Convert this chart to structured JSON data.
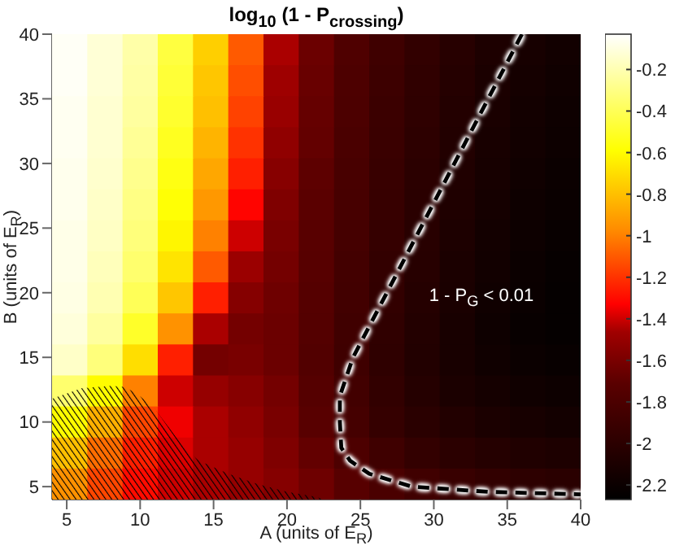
{
  "chart_data": {
    "type": "heatmap",
    "title": "log$_{10}$ (1 - P$_{crossing}$)",
    "xlabel": "A  (units of E$_{R}$)",
    "ylabel": "B  (units of E$_{R}$)",
    "x": [
      5.2,
      7.6,
      10,
      12.4,
      14.8,
      17.2,
      19.6,
      22,
      24.4,
      26.8,
      29.2,
      31.6,
      34,
      36.4,
      38.8
    ],
    "xlim": [
      4,
      40
    ],
    "ylim": [
      4,
      40
    ],
    "xticks": [
      5,
      10,
      15,
      20,
      25,
      30,
      35,
      40
    ],
    "yticks": [
      5,
      10,
      15,
      20,
      25,
      30,
      35,
      40
    ],
    "clim": [
      -2.27,
      -0.03
    ],
    "cticks": [
      -0.2,
      -0.4,
      -0.6,
      -0.8,
      -1,
      -1.2,
      -1.4,
      -1.6,
      -1.8,
      -2,
      -2.2
    ],
    "cells": [
      [
        -0.05,
        -0.12,
        -0.22,
        -0.45,
        -0.75,
        -1.1,
        -1.45,
        -1.65,
        -1.78,
        -1.88,
        -1.96,
        -2.03,
        -2.09,
        -2.13,
        -2.16
      ],
      [
        -0.05,
        -0.12,
        -0.23,
        -0.47,
        -0.78,
        -1.13,
        -1.47,
        -1.66,
        -1.79,
        -1.89,
        -1.97,
        -2.04,
        -2.1,
        -2.14,
        -2.17
      ],
      [
        -0.06,
        -0.13,
        -0.24,
        -0.49,
        -0.8,
        -1.16,
        -1.49,
        -1.67,
        -1.8,
        -1.9,
        -1.98,
        -2.05,
        -2.11,
        -2.15,
        -2.18
      ],
      [
        -0.06,
        -0.13,
        -0.26,
        -0.52,
        -0.84,
        -1.2,
        -1.52,
        -1.68,
        -1.81,
        -1.91,
        -1.99,
        -2.06,
        -2.12,
        -2.16,
        -2.19
      ],
      [
        -0.07,
        -0.14,
        -0.28,
        -0.55,
        -0.88,
        -1.25,
        -1.55,
        -1.7,
        -1.82,
        -1.92,
        -2.0,
        -2.07,
        -2.13,
        -2.17,
        -2.2
      ],
      [
        -0.07,
        -0.15,
        -0.3,
        -0.58,
        -0.93,
        -1.32,
        -1.58,
        -1.71,
        -1.83,
        -1.93,
        -2.01,
        -2.08,
        -2.14,
        -2.18,
        -2.21
      ],
      [
        -0.08,
        -0.16,
        -0.32,
        -0.62,
        -1.0,
        -1.4,
        -1.6,
        -1.72,
        -1.84,
        -1.94,
        -2.02,
        -2.09,
        -2.15,
        -2.19,
        -2.22
      ],
      [
        -0.08,
        -0.18,
        -0.35,
        -0.68,
        -1.1,
        -1.48,
        -1.62,
        -1.73,
        -1.85,
        -1.95,
        -2.03,
        -2.1,
        -2.16,
        -2.2,
        -2.23
      ],
      [
        -0.09,
        -0.2,
        -0.4,
        -0.78,
        -1.25,
        -1.56,
        -1.64,
        -1.74,
        -1.86,
        -1.96,
        -2.04,
        -2.11,
        -2.17,
        -2.21,
        -2.24
      ],
      [
        -0.11,
        -0.24,
        -0.5,
        -0.95,
        -1.45,
        -1.62,
        -1.65,
        -1.75,
        -1.87,
        -1.97,
        -2.05,
        -2.12,
        -2.18,
        -2.22,
        -2.24
      ],
      [
        -0.15,
        -0.32,
        -0.7,
        -1.25,
        -1.62,
        -1.6,
        -1.65,
        -1.76,
        -1.88,
        -1.98,
        -2.06,
        -2.12,
        -2.17,
        -2.2,
        -2.22
      ],
      [
        -0.35,
        -0.6,
        -1.0,
        -1.4,
        -1.5,
        -1.55,
        -1.62,
        -1.74,
        -1.86,
        -1.96,
        -2.04,
        -2.1,
        -2.14,
        -2.17,
        -2.19
      ],
      [
        -0.6,
        -0.85,
        -1.15,
        -1.35,
        -1.45,
        -1.52,
        -1.6,
        -1.72,
        -1.84,
        -1.94,
        -2.01,
        -2.06,
        -2.1,
        -2.13,
        -2.15
      ],
      [
        -0.8,
        -1.05,
        -1.25,
        -1.38,
        -1.45,
        -1.5,
        -1.58,
        -1.68,
        -1.79,
        -1.88,
        -1.95,
        -2.0,
        -2.04,
        -2.07,
        -2.09
      ],
      [
        -0.95,
        -1.15,
        -1.3,
        -1.4,
        -1.45,
        -1.5,
        -1.56,
        -1.64,
        -1.73,
        -1.81,
        -1.87,
        -1.92,
        -1.96,
        -1.99,
        -2.01
      ]
    ],
    "series": [
      {
        "type": "area",
        "color": "#000000",
        "x": [
          4,
          6,
          8,
          9,
          10,
          11,
          12,
          13,
          14,
          16,
          18,
          20,
          22,
          22.5
        ],
        "values": [
          11.8,
          12.6,
          12.8,
          12.7,
          12,
          11,
          9.5,
          8,
          7,
          6,
          5.2,
          4.6,
          4.2,
          4
        ]
      },
      {
        "type": "line",
        "color": "#000000",
        "line_style": "dashed",
        "x": [
          36,
          31.4,
          26.8,
          24.5,
          23.6,
          23.6,
          23.7,
          24.3,
          25.6,
          28.5,
          33.7,
          40
        ],
        "values": [
          40,
          30,
          20,
          15,
          12,
          10,
          8,
          7,
          6,
          5,
          4.6,
          4.4
        ]
      }
    ],
    "annotations": [
      "1 - P$_{G}$ < 0.01"
    ]
  }
}
